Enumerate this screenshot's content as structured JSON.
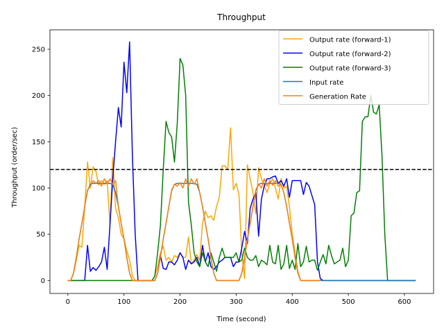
{
  "chart_data": {
    "type": "line",
    "title": "Throughput",
    "xlabel": "Time (second)",
    "ylabel": "Throughput (order/sec)",
    "xlim": [
      -32,
      652
    ],
    "ylim": [
      -14,
      271
    ],
    "xticks": [
      0,
      100,
      200,
      300,
      400,
      500,
      600
    ],
    "yticks": [
      0,
      50,
      100,
      150,
      200,
      250
    ],
    "grid": false,
    "legend_position": "top-right",
    "reference_line": {
      "y": 120,
      "style": "dashed",
      "color": "#000000"
    },
    "series": [
      {
        "name": "Output rate (forward-1)",
        "color": "#ffa500",
        "x": [
          0,
          5,
          10,
          15,
          20,
          25,
          30,
          35,
          40,
          45,
          50,
          55,
          60,
          65,
          70,
          75,
          80,
          85,
          90,
          95,
          100,
          105,
          110,
          115,
          120,
          125,
          130,
          135,
          140,
          145,
          150,
          155,
          160,
          165,
          170,
          175,
          180,
          185,
          190,
          195,
          200,
          205,
          210,
          215,
          220,
          225,
          230,
          235,
          240,
          245,
          250,
          255,
          260,
          265,
          270,
          275,
          280,
          285,
          290,
          295,
          300,
          305,
          310,
          315,
          320,
          325,
          330,
          335,
          340,
          345,
          350,
          355,
          360,
          365,
          370,
          375,
          380,
          385,
          390,
          395,
          400,
          405,
          410,
          415,
          420,
          425,
          430,
          435,
          440,
          445,
          450
        ],
        "values": [
          0,
          0,
          8,
          22,
          38,
          36,
          80,
          128,
          100,
          123,
          118,
          103,
          108,
          104,
          108,
          60,
          133,
          78,
          68,
          50,
          45,
          32,
          22,
          5,
          0,
          0,
          0,
          0,
          0,
          0,
          0,
          5,
          15,
          30,
          37,
          22,
          25,
          20,
          27,
          25,
          30,
          25,
          25,
          47,
          18,
          22,
          28,
          22,
          62,
          75,
          68,
          70,
          65,
          80,
          90,
          124,
          124,
          120,
          165,
          98,
          105,
          93,
          30,
          2,
          125,
          110,
          95,
          72,
          122,
          110,
          103,
          95,
          105,
          110,
          100,
          88,
          110,
          100,
          102,
          80,
          50,
          30,
          10,
          0,
          0,
          0,
          0,
          0,
          0,
          0,
          0
        ]
      },
      {
        "name": "Output rate (forward-2)",
        "color": "#0000ff",
        "x": [
          0,
          5,
          10,
          15,
          20,
          25,
          30,
          35,
          40,
          45,
          50,
          55,
          60,
          65,
          70,
          75,
          80,
          85,
          90,
          95,
          100,
          105,
          110,
          115,
          120,
          125,
          130,
          135,
          140,
          145,
          150,
          155,
          160,
          165,
          170,
          175,
          180,
          185,
          190,
          195,
          200,
          205,
          210,
          215,
          220,
          225,
          230,
          235,
          240,
          245,
          250,
          255,
          260,
          265,
          270,
          275,
          280,
          285,
          290,
          295,
          300,
          305,
          310,
          315,
          320,
          325,
          330,
          335,
          340,
          345,
          350,
          355,
          360,
          365,
          370,
          375,
          380,
          385,
          390,
          395,
          400,
          405,
          410,
          415,
          420,
          425,
          430,
          435,
          440,
          445,
          450,
          455,
          460,
          470,
          480,
          500,
          520,
          540,
          560,
          580,
          600,
          620
        ],
        "values": [
          0,
          0,
          0,
          0,
          0,
          0,
          0,
          38,
          10,
          14,
          11,
          15,
          20,
          36,
          12,
          60,
          110,
          150,
          187,
          166,
          236,
          203,
          258,
          135,
          50,
          0,
          0,
          0,
          0,
          0,
          0,
          0,
          8,
          27,
          13,
          12,
          20,
          20,
          17,
          22,
          30,
          25,
          12,
          22,
          18,
          20,
          25,
          15,
          38,
          20,
          30,
          15,
          12,
          15,
          20,
          22,
          25,
          25,
          25,
          15,
          20,
          20,
          35,
          53,
          40,
          78,
          88,
          95,
          48,
          88,
          102,
          110,
          110,
          112,
          113,
          105,
          108,
          102,
          110,
          90,
          108,
          108,
          108,
          108,
          93,
          106,
          102,
          92,
          82,
          20,
          2,
          0,
          0,
          0,
          0,
          0,
          0,
          0,
          0,
          0,
          0,
          0
        ]
      },
      {
        "name": "Output rate (forward-3)",
        "color": "#008000",
        "x": [
          0,
          50,
          100,
          130,
          140,
          145,
          150,
          155,
          160,
          165,
          170,
          175,
          180,
          185,
          190,
          195,
          200,
          205,
          210,
          215,
          220,
          225,
          230,
          235,
          240,
          245,
          250,
          255,
          260,
          265,
          270,
          275,
          280,
          285,
          290,
          295,
          300,
          305,
          310,
          315,
          320,
          325,
          330,
          335,
          340,
          345,
          350,
          355,
          360,
          365,
          370,
          375,
          380,
          385,
          390,
          395,
          400,
          405,
          410,
          415,
          420,
          425,
          430,
          435,
          440,
          445,
          450,
          455,
          460,
          465,
          470,
          475,
          480,
          485,
          490,
          495,
          500,
          505,
          510,
          515,
          520,
          525,
          530,
          535,
          540,
          545,
          550,
          555,
          560,
          565,
          570,
          575,
          580,
          600,
          620
        ],
        "values": [
          0,
          0,
          0,
          0,
          0,
          0,
          0,
          5,
          30,
          60,
          120,
          172,
          160,
          155,
          128,
          170,
          240,
          233,
          200,
          85,
          60,
          30,
          20,
          15,
          30,
          20,
          15,
          30,
          20,
          10,
          25,
          35,
          25,
          25,
          25,
          25,
          30,
          20,
          22,
          35,
          25,
          22,
          22,
          27,
          15,
          22,
          20,
          17,
          38,
          20,
          18,
          38,
          12,
          18,
          38,
          13,
          22,
          12,
          40,
          15,
          20,
          37,
          20,
          22,
          22,
          11,
          20,
          28,
          18,
          38,
          27,
          18,
          20,
          22,
          35,
          15,
          22,
          70,
          73,
          95,
          97,
          172,
          177,
          177,
          200,
          182,
          180,
          190,
          135,
          50,
          0,
          0,
          0,
          0,
          0
        ]
      },
      {
        "name": "Input rate",
        "color": "#1f77b4",
        "x": [
          0,
          5,
          10,
          15,
          20,
          25,
          30,
          35,
          40,
          45,
          75,
          80,
          85,
          90,
          95,
          100,
          105,
          110,
          115,
          120,
          150,
          155,
          160,
          165,
          170,
          175,
          180,
          185,
          190,
          195,
          225,
          230,
          235,
          240,
          245,
          250,
          255,
          260,
          265,
          270,
          300,
          305,
          310,
          315,
          320,
          325,
          330,
          335,
          340,
          345,
          375,
          380,
          385,
          390,
          395,
          400,
          405,
          410,
          415,
          420,
          450,
          500,
          550,
          600,
          620
        ],
        "values": [
          0,
          0,
          8,
          25,
          45,
          62,
          80,
          97,
          104,
          105,
          105,
          104,
          95,
          80,
          62,
          45,
          25,
          8,
          0,
          0,
          0,
          0,
          8,
          25,
          45,
          62,
          80,
          97,
          104,
          105,
          105,
          104,
          95,
          80,
          62,
          45,
          25,
          8,
          0,
          0,
          0,
          0,
          8,
          25,
          45,
          62,
          80,
          97,
          104,
          105,
          105,
          104,
          95,
          80,
          62,
          45,
          25,
          8,
          0,
          0,
          0,
          0,
          0,
          0,
          0
        ]
      },
      {
        "name": "Generation Rate",
        "color": "#ff7f0e",
        "x": [
          0,
          5,
          10,
          15,
          20,
          25,
          30,
          35,
          40,
          45,
          50,
          55,
          60,
          65,
          70,
          75,
          80,
          85,
          90,
          95,
          100,
          105,
          110,
          115,
          120,
          150,
          155,
          160,
          165,
          170,
          175,
          180,
          185,
          190,
          195,
          200,
          205,
          210,
          215,
          220,
          225,
          230,
          235,
          240,
          245,
          250,
          255,
          260,
          265,
          270,
          300,
          305,
          310,
          315,
          320,
          325,
          330,
          335,
          340,
          345,
          350,
          355,
          360,
          365,
          370,
          375,
          380,
          385,
          390,
          395,
          400,
          405,
          410,
          415,
          420,
          450
        ],
        "values": [
          0,
          0,
          8,
          25,
          45,
          62,
          80,
          98,
          102,
          108,
          105,
          108,
          102,
          110,
          104,
          110,
          104,
          108,
          80,
          62,
          45,
          25,
          8,
          0,
          0,
          0,
          0,
          8,
          25,
          45,
          62,
          80,
          98,
          104,
          102,
          106,
          100,
          110,
          102,
          110,
          104,
          110,
          95,
          80,
          62,
          45,
          25,
          8,
          0,
          0,
          0,
          0,
          8,
          25,
          45,
          62,
          80,
          98,
          104,
          100,
          110,
          102,
          108,
          103,
          108,
          102,
          104,
          95,
          80,
          62,
          45,
          25,
          8,
          0,
          0,
          0
        ]
      }
    ]
  }
}
